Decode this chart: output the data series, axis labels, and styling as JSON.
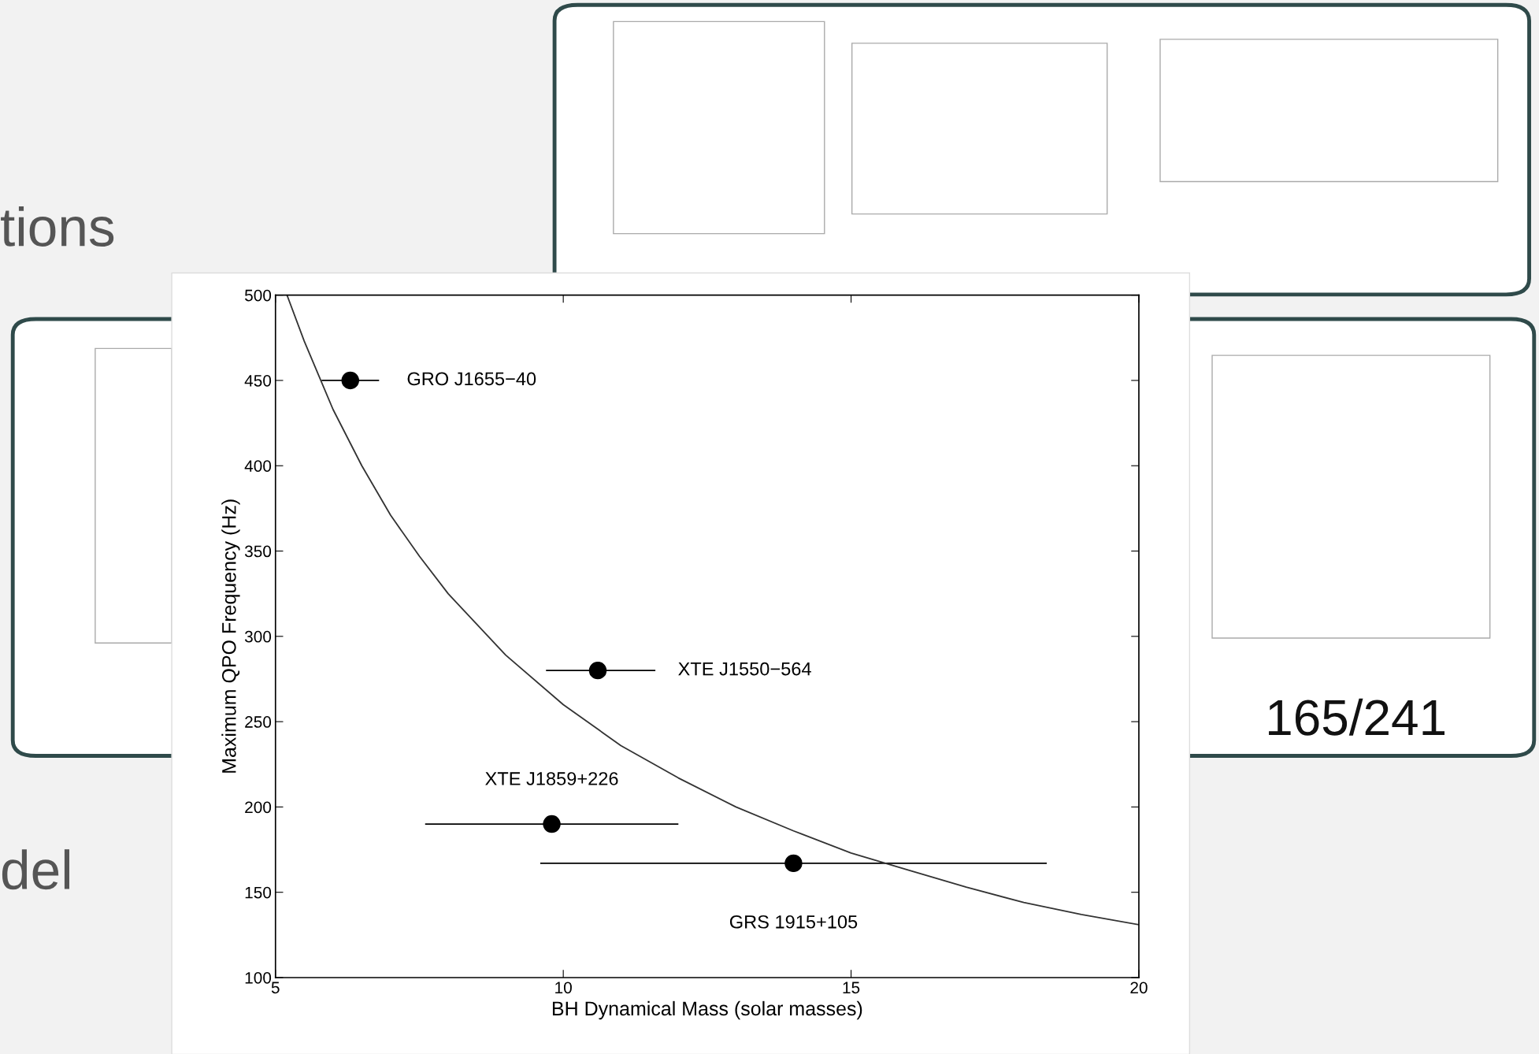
{
  "chart_data": {
    "type": "scatter",
    "xlabel": "BH Dynamical Mass (solar masses)",
    "ylabel": "Maximum QPO Frequency (Hz)",
    "xlim": [
      5,
      20
    ],
    "xticks": [
      5,
      10,
      15,
      20
    ],
    "ylim": [
      100,
      500
    ],
    "yticks": [
      100,
      150,
      200,
      250,
      300,
      350,
      400,
      450,
      500
    ],
    "grid": false,
    "marker": "circle",
    "series": [
      {
        "color": "#000000",
        "x": [
          6.3,
          10.6,
          9.8,
          14.0
        ],
        "values": [
          450,
          280,
          190,
          167
        ],
        "xerrors": [
          [
            5.8,
            6.8
          ],
          [
            9.7,
            11.6
          ],
          [
            7.6,
            12.0
          ],
          [
            9.6,
            18.4
          ]
        ]
      },
      {
        "type": "line",
        "color": "#333333",
        "marker": "none",
        "line_style": "solid",
        "x": [
          5.2,
          5.5,
          6,
          6.5,
          7,
          7.5,
          8,
          9,
          10,
          11,
          12,
          13,
          14,
          15,
          16,
          17,
          18,
          19,
          20
        ],
        "values": [
          500,
          473,
          433,
          400,
          371,
          347,
          325,
          289,
          260,
          236,
          217,
          200,
          186,
          173,
          163,
          153,
          144,
          137,
          131
        ]
      }
    ],
    "annotations": [
      "GRO J1655−40",
      "XTE J1550−564",
      {
        "text": "XTE J1859+226",
        "x": 9.8,
        "y": 190
      },
      {
        "text": "GRS 1915+105",
        "x": 14.0,
        "y": 167
      },
      "tions",
      "del",
      "165/241"
    ]
  }
}
